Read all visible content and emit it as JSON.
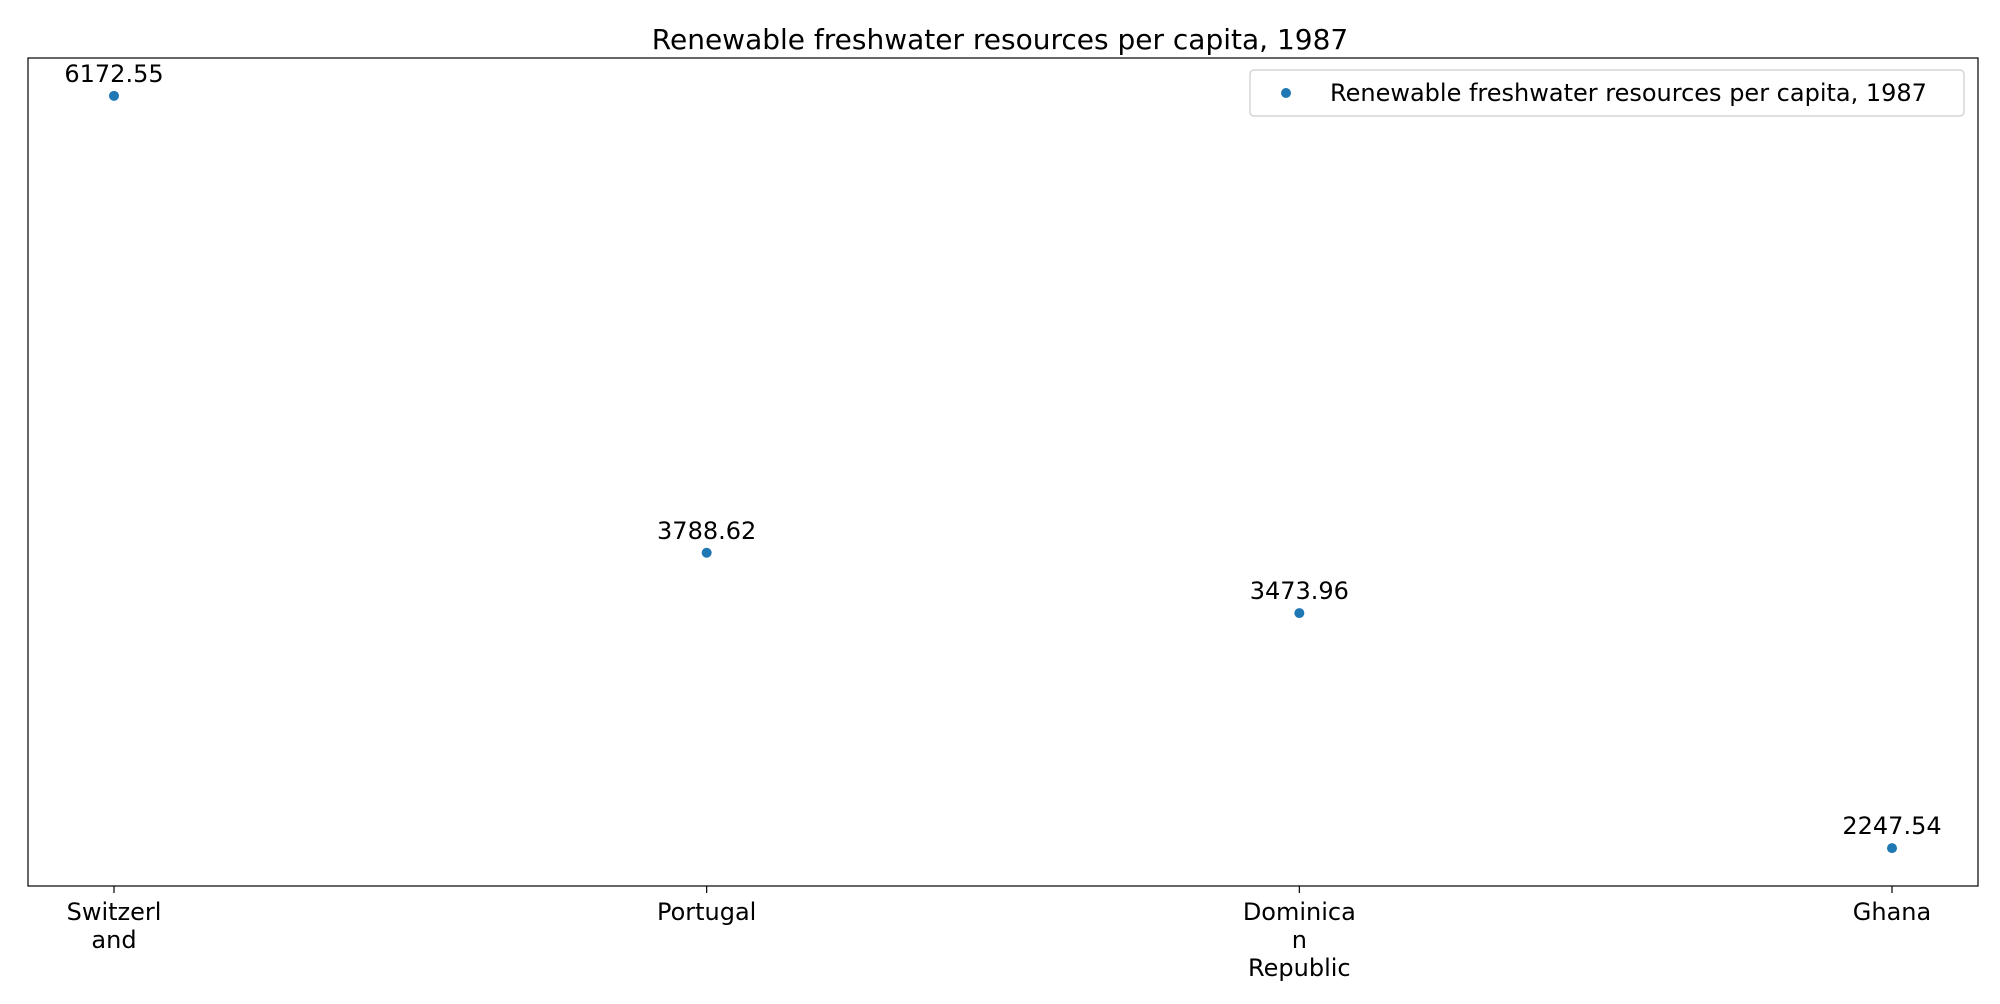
{
  "chart_data": {
    "type": "scatter",
    "title": "Renewable freshwater resources per capita, 1987",
    "xlabel": "",
    "ylabel": "",
    "categories": [
      [
        "Switzerl",
        "and"
      ],
      [
        "Portugal"
      ],
      [
        "Dominica",
        "n",
        "Republic"
      ],
      [
        "Ghana"
      ]
    ],
    "series": [
      {
        "name": "Renewable freshwater resources per capita, 1987",
        "color": "#1f77b4",
        "values": [
          6172.55,
          3788.62,
          3473.96,
          2247.54
        ],
        "labels": [
          "6172.55",
          "3788.62",
          "3473.96",
          "2247.54"
        ]
      }
    ],
    "ylim": [
      2050,
      6370
    ],
    "y_ticks_visible": false,
    "grid": false,
    "legend": {
      "position": "top-right",
      "entries": [
        "Renewable freshwater resources per capita, 1987"
      ]
    }
  }
}
